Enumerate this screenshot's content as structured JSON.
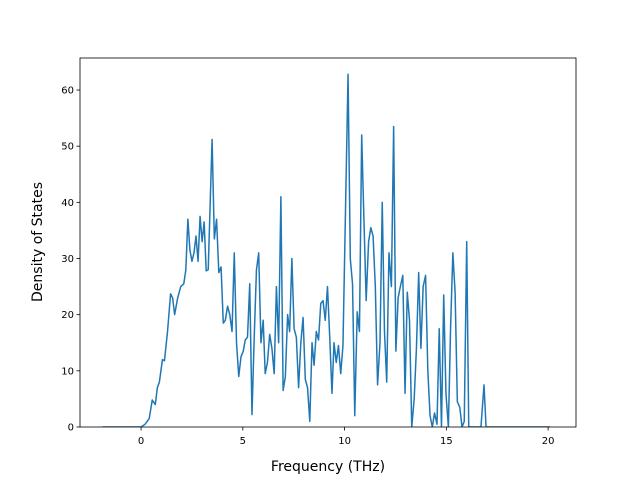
{
  "chart_data": {
    "type": "line",
    "x_label": "Frequency (THz)",
    "y_label": "Density of States",
    "xlim": [
      -3.0,
      21.37
    ],
    "ylim": [
      0,
      65.7
    ],
    "xticks": [
      0,
      5,
      10,
      15,
      20
    ],
    "yticks": [
      0,
      10,
      20,
      30,
      40,
      50,
      60
    ],
    "series": [
      {
        "color": "#1f77b4",
        "x": [
          -1.9,
          0.0,
          0.2,
          0.4,
          0.55,
          0.7,
          0.8,
          0.9,
          1.05,
          1.15,
          1.3,
          1.45,
          1.55,
          1.65,
          1.8,
          1.95,
          2.1,
          2.2,
          2.3,
          2.4,
          2.5,
          2.6,
          2.7,
          2.8,
          2.9,
          3.0,
          3.1,
          3.2,
          3.3,
          3.49,
          3.6,
          3.71,
          3.82,
          3.93,
          4.04,
          4.14,
          4.25,
          4.36,
          4.47,
          4.58,
          4.69,
          4.8,
          4.91,
          5.02,
          5.12,
          5.23,
          5.34,
          5.45,
          5.56,
          5.67,
          5.78,
          5.89,
          6.0,
          6.1,
          6.21,
          6.32,
          6.43,
          6.54,
          6.65,
          6.76,
          6.87,
          6.98,
          7.09,
          7.2,
          7.3,
          7.41,
          7.52,
          7.63,
          7.74,
          7.85,
          7.96,
          8.07,
          8.18,
          8.29,
          8.4,
          8.5,
          8.61,
          8.72,
          8.83,
          8.94,
          9.05,
          9.16,
          9.27,
          9.38,
          9.48,
          9.59,
          9.7,
          9.81,
          9.92,
          10.17,
          10.28,
          10.39,
          10.5,
          10.62,
          10.73,
          10.84,
          10.95,
          11.06,
          11.18,
          11.29,
          11.4,
          11.51,
          11.62,
          11.74,
          11.85,
          11.96,
          12.07,
          12.18,
          12.3,
          12.41,
          12.52,
          12.63,
          12.74,
          12.86,
          12.97,
          13.08,
          13.19,
          13.3,
          13.42,
          13.53,
          13.64,
          13.75,
          13.86,
          13.98,
          14.09,
          14.2,
          14.31,
          14.42,
          14.54,
          14.65,
          14.76,
          14.87,
          14.98,
          15.1,
          15.21,
          15.32,
          15.43,
          15.54,
          15.66,
          15.77,
          15.88,
          16.0,
          16.1,
          16.7,
          16.85,
          16.95,
          20.1
        ],
        "values": [
          0,
          0,
          0.5,
          1.5,
          4.8,
          4.0,
          7,
          8,
          12,
          11.8,
          17,
          23.7,
          23,
          20,
          23,
          25,
          25.5,
          28,
          37,
          31.5,
          29.5,
          31,
          34,
          29.5,
          37.5,
          33,
          36.5,
          27.8,
          28,
          51.2,
          33.5,
          37,
          27.5,
          28.5,
          18.5,
          19,
          21.5,
          20,
          17,
          31,
          15,
          9,
          12.5,
          13.5,
          15.5,
          16,
          25.5,
          2.2,
          16,
          28,
          31,
          15,
          19,
          9.5,
          11.5,
          16.5,
          14,
          9.5,
          25,
          15,
          41,
          6.5,
          9,
          20,
          17,
          30,
          17.5,
          16,
          7,
          15,
          19.5,
          8.5,
          7,
          1,
          15,
          11,
          17,
          15.5,
          22,
          22.5,
          19,
          25,
          16,
          6,
          15,
          11.5,
          14.5,
          9.5,
          14.5,
          62.8,
          30,
          25.5,
          2,
          20.5,
          17,
          52,
          37,
          22.5,
          33,
          35.5,
          34,
          25,
          7.5,
          15,
          40,
          17,
          8,
          31,
          25,
          53.5,
          13.5,
          23,
          25,
          27,
          6,
          24,
          19,
          0,
          5,
          14,
          27.5,
          14,
          25,
          27,
          10,
          2,
          0,
          2.5,
          0.5,
          17.5,
          0,
          23.5,
          6,
          0,
          18,
          31,
          24,
          4.5,
          3.5,
          0,
          1,
          33,
          0,
          0,
          7.5,
          0,
          0
        ]
      }
    ]
  }
}
